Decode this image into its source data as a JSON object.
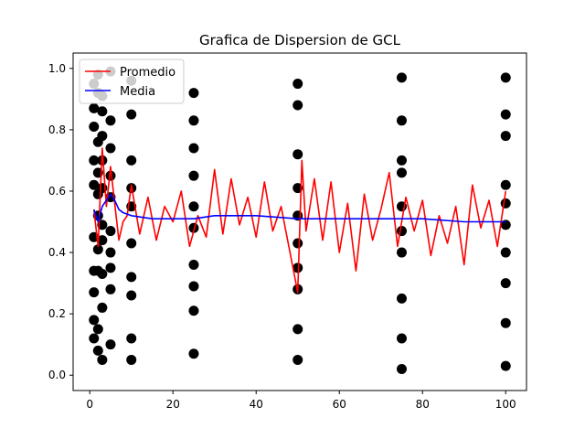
{
  "chart_data": {
    "type": "scatter",
    "title": "Grafica de Dispersion de GCL",
    "xlabel": "",
    "ylabel": "",
    "xlim": [
      -4,
      105
    ],
    "ylim": [
      -0.05,
      1.05
    ],
    "x_ticks": [
      0,
      20,
      40,
      60,
      80,
      100
    ],
    "x_tick_labels": [
      "0",
      "20",
      "40",
      "60",
      "80",
      "100"
    ],
    "y_ticks": [
      0.0,
      0.2,
      0.4,
      0.6,
      0.8,
      1.0
    ],
    "y_tick_labels": [
      "0.0",
      "0.2",
      "0.4",
      "0.6",
      "0.8",
      "1.0"
    ],
    "grid": false,
    "legend": {
      "position": "top-left",
      "entries": [
        "Promedio",
        "Media"
      ]
    },
    "colors": {
      "scatter": "#000000",
      "promedio": "#ff0000",
      "media": "#0000ff"
    },
    "points_per_x": 10,
    "scatter": {
      "name": "",
      "x_range": [
        1,
        100
      ],
      "y_range": [
        0,
        1
      ],
      "points": [
        [
          1,
          0.87
        ],
        [
          1,
          0.18
        ],
        [
          1,
          0.34
        ],
        [
          1,
          0.7
        ],
        [
          1,
          0.12
        ],
        [
          1,
          0.95
        ],
        [
          1,
          0.62
        ],
        [
          1,
          0.45
        ],
        [
          1,
          0.81
        ],
        [
          1,
          0.27
        ],
        [
          2,
          0.92
        ],
        [
          2,
          0.08
        ],
        [
          2,
          0.52
        ],
        [
          2,
          0.76
        ],
        [
          2,
          0.34
        ],
        [
          2,
          0.41
        ],
        [
          2,
          0.66
        ],
        [
          2,
          0.15
        ],
        [
          2,
          0.98
        ],
        [
          2,
          0.59
        ],
        [
          3,
          0.78
        ],
        [
          3,
          0.44
        ],
        [
          3,
          0.33
        ],
        [
          3,
          0.61
        ],
        [
          3,
          0.86
        ],
        [
          3,
          0.22
        ],
        [
          3,
          0.49
        ],
        [
          3,
          0.05
        ],
        [
          3,
          0.7
        ],
        [
          3,
          0.91
        ],
        [
          5,
          0.35
        ],
        [
          5,
          0.83
        ],
        [
          5,
          0.65
        ],
        [
          5,
          0.1
        ],
        [
          5,
          0.58
        ],
        [
          5,
          0.47
        ],
        [
          5,
          0.99
        ],
        [
          5,
          0.28
        ],
        [
          5,
          0.74
        ],
        [
          5,
          0.4
        ],
        [
          10,
          0.32
        ],
        [
          10,
          0.85
        ],
        [
          10,
          0.12
        ],
        [
          10,
          0.55
        ],
        [
          10,
          0.7
        ],
        [
          10,
          0.05
        ],
        [
          10,
          0.96
        ],
        [
          10,
          0.26
        ],
        [
          10,
          0.61
        ],
        [
          10,
          0.43
        ],
        [
          25,
          0.83
        ],
        [
          25,
          0.65
        ],
        [
          25,
          0.21
        ],
        [
          25,
          0.92
        ],
        [
          25,
          0.48
        ],
        [
          25,
          0.07
        ],
        [
          25,
          0.55
        ],
        [
          25,
          0.36
        ],
        [
          25,
          0.74
        ],
        [
          25,
          0.29
        ],
        [
          50,
          0.28
        ],
        [
          50,
          0.72
        ],
        [
          50,
          0.15
        ],
        [
          50,
          0.88
        ],
        [
          50,
          0.43
        ],
        [
          50,
          0.61
        ],
        [
          50,
          0.05
        ],
        [
          50,
          0.95
        ],
        [
          50,
          0.35
        ],
        [
          50,
          0.52
        ],
        [
          75,
          0.66
        ],
        [
          75,
          0.4
        ],
        [
          75,
          0.12
        ],
        [
          75,
          0.83
        ],
        [
          75,
          0.55
        ],
        [
          75,
          0.25
        ],
        [
          75,
          0.97
        ],
        [
          75,
          0.47
        ],
        [
          75,
          0.02
        ],
        [
          75,
          0.7
        ],
        [
          100,
          0.97
        ],
        [
          100,
          0.03
        ],
        [
          100,
          0.49
        ],
        [
          100,
          0.62
        ],
        [
          100,
          0.3
        ],
        [
          100,
          0.85
        ],
        [
          100,
          0.17
        ],
        [
          100,
          0.78
        ],
        [
          100,
          0.4
        ],
        [
          100,
          0.56
        ]
      ]
    },
    "series": [
      {
        "name": "Promedio",
        "x": [
          1,
          2,
          3,
          4,
          5,
          6,
          7,
          8,
          9,
          10,
          12,
          14,
          16,
          18,
          20,
          22,
          24,
          26,
          28,
          30,
          32,
          34,
          36,
          38,
          40,
          42,
          44,
          46,
          48,
          50,
          51,
          52,
          54,
          56,
          58,
          60,
          62,
          64,
          66,
          68,
          70,
          72,
          74,
          76,
          78,
          80,
          82,
          84,
          86,
          88,
          90,
          92,
          94,
          96,
          98,
          100
        ],
        "y": [
          0.54,
          0.42,
          0.74,
          0.55,
          0.68,
          0.56,
          0.44,
          0.5,
          0.52,
          0.62,
          0.46,
          0.58,
          0.44,
          0.55,
          0.5,
          0.6,
          0.42,
          0.52,
          0.45,
          0.67,
          0.46,
          0.64,
          0.49,
          0.58,
          0.45,
          0.63,
          0.47,
          0.55,
          0.41,
          0.27,
          0.7,
          0.47,
          0.64,
          0.44,
          0.63,
          0.4,
          0.56,
          0.34,
          0.59,
          0.44,
          0.54,
          0.66,
          0.42,
          0.58,
          0.47,
          0.57,
          0.39,
          0.52,
          0.43,
          0.55,
          0.36,
          0.62,
          0.48,
          0.57,
          0.42,
          0.6
        ]
      },
      {
        "name": "Media",
        "x": [
          1,
          2,
          3,
          4,
          5,
          6,
          7,
          8,
          10,
          15,
          20,
          25,
          30,
          40,
          50,
          60,
          70,
          80,
          90,
          100
        ],
        "y": [
          0.54,
          0.5,
          0.55,
          0.57,
          0.59,
          0.57,
          0.54,
          0.53,
          0.52,
          0.51,
          0.51,
          0.51,
          0.52,
          0.52,
          0.51,
          0.51,
          0.51,
          0.51,
          0.5,
          0.5
        ]
      }
    ]
  }
}
